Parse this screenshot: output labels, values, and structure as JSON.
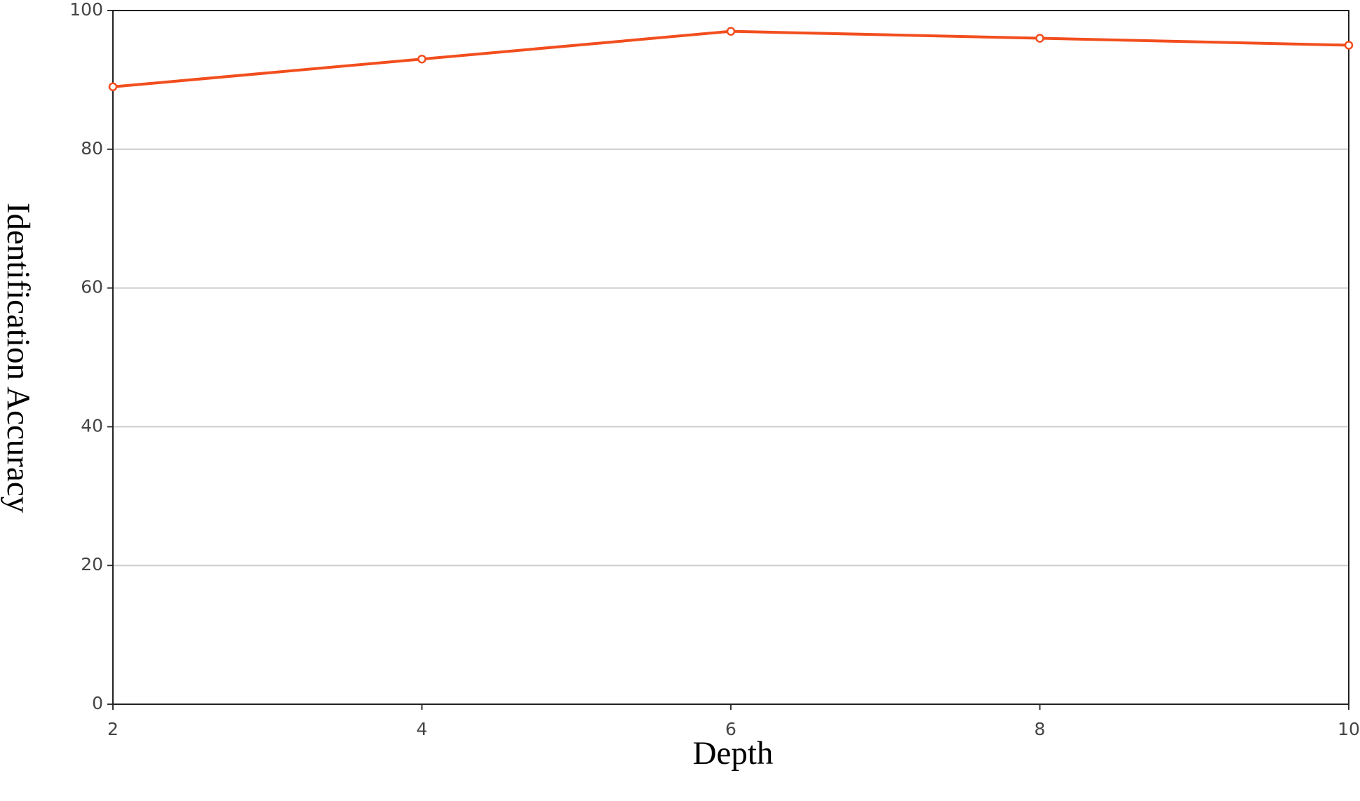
{
  "chart_data": {
    "type": "line",
    "x": [
      2,
      4,
      6,
      8,
      10
    ],
    "series": [
      {
        "color": "#f24e1e",
        "values": [
          89,
          93,
          97,
          96,
          95
        ]
      }
    ],
    "xlabel": "Depth",
    "ylabel": "Identification Accuracy",
    "xlim": [
      2,
      10
    ],
    "xticks": [
      2,
      4,
      6,
      8,
      10
    ],
    "ylim": [
      0,
      100
    ],
    "yticks": [
      0,
      20,
      40,
      60,
      80,
      100
    ],
    "grid": true
  }
}
